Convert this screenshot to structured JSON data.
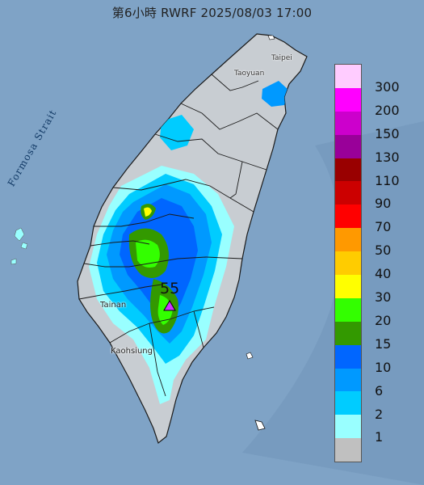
{
  "title": "第6小時  RWRF 2025/08/03 17:00",
  "places": {
    "taoyuan": "Taoyuan",
    "taipei": "Taipei",
    "tainan": "Tainan",
    "kaohsiung": "Kaohsiung"
  },
  "strait_label": "Formosa Strait",
  "max_marker": {
    "value": "55",
    "icon": "triangle-marker-icon",
    "color": "#cc33ff"
  },
  "legend": {
    "swatch_colors": [
      "#ffccff",
      "#ff00ff",
      "#cc00cc",
      "#990099",
      "#990000",
      "#cc0000",
      "#ff0000",
      "#ff9900",
      "#ffcc00",
      "#ffff00",
      "#33ff00",
      "#339900",
      "#0066ff",
      "#0099ff",
      "#00ccff",
      "#99ffff",
      "#c0c0c0"
    ],
    "labels": [
      "300",
      "200",
      "150",
      "130",
      "110",
      "90",
      "70",
      "50",
      "40",
      "30",
      "20",
      "15",
      "10",
      "6",
      "2",
      "1"
    ]
  }
}
